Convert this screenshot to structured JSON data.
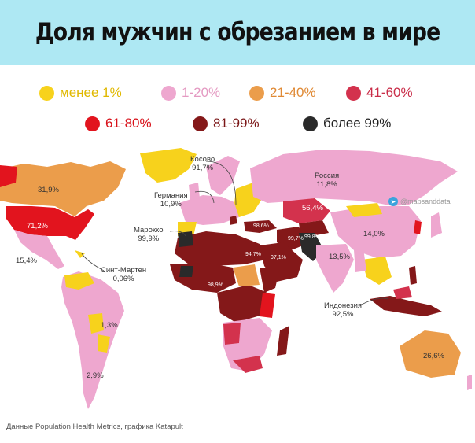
{
  "title": "Доля мужчин с обрезанием в мире",
  "legend": [
    {
      "label": "менее 1%",
      "color": "#f7d21c"
    },
    {
      "label": "1-20%",
      "color": "#eea7cf"
    },
    {
      "label": "21-40%",
      "color": "#eb9d4b"
    },
    {
      "label": "41-60%",
      "color": "#d3324d"
    },
    {
      "label": "61-80%",
      "color": "#e2141e"
    },
    {
      "label": "81-99%",
      "color": "#841819"
    },
    {
      "label": "более 99%",
      "color": "#2a2a2a"
    }
  ],
  "labels": {
    "kosovo": {
      "name": "Косово",
      "value": "91,7%"
    },
    "russia": {
      "name": "Россия",
      "value": "11,8%"
    },
    "germany": {
      "name": "Германия",
      "value": "10,9%"
    },
    "morocco": {
      "name": "Марокко",
      "value": "99,9%"
    },
    "sint_maarten": {
      "name": "Синт-Мартен",
      "value": "0,06%"
    },
    "indonesia": {
      "name": "Индонезия",
      "value": "92,5%"
    },
    "canada": "31,9%",
    "usa": "71,2%",
    "mexico": "15,4%",
    "brazil": "1,3%",
    "argentina": "2,9%",
    "kazakhstan": "56,4%",
    "china": "14,0%",
    "india": "13,5%",
    "australia": "26,6%",
    "turkey": "98,6%",
    "afghanistan": "99,7%",
    "pakistan": "99,8%",
    "egypt": "94,7%",
    "saudi": "97,1%",
    "nigeria": "98,9%"
  },
  "watermark": "@mapsanddata",
  "source": "Данные Population Health Metrics, графика Katapult"
}
